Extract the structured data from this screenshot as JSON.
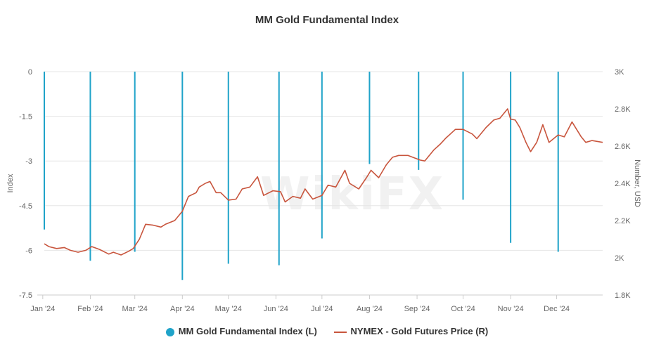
{
  "chart_data": {
    "type": "line",
    "title": "MM Gold Fundamental Index",
    "watermark": "WikiFX",
    "xlabel": "",
    "ylabel_left": "Index",
    "ylabel_right": "Number, USD",
    "x_ticks": [
      "Jan '24",
      "Feb '24",
      "Mar '24",
      "Apr '24",
      "May '24",
      "Jun '24",
      "Jul '24",
      "Aug '24",
      "Sep '24",
      "Oct '24",
      "Nov '24",
      "Dec '24"
    ],
    "y_left_ticks": [
      "0",
      "-1.5",
      "-3",
      "-4.5",
      "-6",
      "-7.5"
    ],
    "y_left_range": [
      -7.5,
      0
    ],
    "y_right_ticks": [
      "3K",
      "2.8K",
      "2.6K",
      "2.4K",
      "2.2K",
      "2K",
      "1.8K"
    ],
    "y_right_range": [
      1800,
      3000
    ],
    "grid": true,
    "legend_position": "bottom",
    "colors": {
      "index": "#1fa3c9",
      "price": "#c8553d",
      "grid": "#e6e6e6"
    },
    "series": [
      {
        "name": "MM Gold Fundamental Index (L)",
        "axis": "left",
        "style": "bar",
        "points": [
          {
            "date": "2024-01-02",
            "value": -5.3
          },
          {
            "date": "2024-02-01",
            "value": -6.35
          },
          {
            "date": "2024-03-01",
            "value": -6.05
          },
          {
            "date": "2024-04-01",
            "value": -7.0
          },
          {
            "date": "2024-05-01",
            "value": -6.45
          },
          {
            "date": "2024-06-03",
            "value": -6.5
          },
          {
            "date": "2024-07-01",
            "value": -5.6
          },
          {
            "date": "2024-08-01",
            "value": -3.1
          },
          {
            "date": "2024-09-02",
            "value": -3.3
          },
          {
            "date": "2024-10-01",
            "value": -4.3
          },
          {
            "date": "2024-11-01",
            "value": -5.75
          },
          {
            "date": "2024-12-02",
            "value": -6.05
          }
        ]
      },
      {
        "name": "NYMEX - Gold Futures Price (R)",
        "axis": "right",
        "style": "line",
        "points": [
          {
            "date": "2024-01-02",
            "value": 2075
          },
          {
            "date": "2024-01-05",
            "value": 2060
          },
          {
            "date": "2024-01-10",
            "value": 2050
          },
          {
            "date": "2024-01-15",
            "value": 2055
          },
          {
            "date": "2024-01-19",
            "value": 2040
          },
          {
            "date": "2024-01-24",
            "value": 2030
          },
          {
            "date": "2024-01-29",
            "value": 2040
          },
          {
            "date": "2024-02-02",
            "value": 2060
          },
          {
            "date": "2024-02-07",
            "value": 2045
          },
          {
            "date": "2024-02-13",
            "value": 2020
          },
          {
            "date": "2024-02-16",
            "value": 2030
          },
          {
            "date": "2024-02-21",
            "value": 2015
          },
          {
            "date": "2024-02-26",
            "value": 2035
          },
          {
            "date": "2024-02-29",
            "value": 2050
          },
          {
            "date": "2024-03-04",
            "value": 2100
          },
          {
            "date": "2024-03-08",
            "value": 2180
          },
          {
            "date": "2024-03-13",
            "value": 2175
          },
          {
            "date": "2024-03-18",
            "value": 2165
          },
          {
            "date": "2024-03-21",
            "value": 2180
          },
          {
            "date": "2024-03-27",
            "value": 2200
          },
          {
            "date": "2024-04-01",
            "value": 2250
          },
          {
            "date": "2024-04-05",
            "value": 2330
          },
          {
            "date": "2024-04-10",
            "value": 2350
          },
          {
            "date": "2024-04-12",
            "value": 2380
          },
          {
            "date": "2024-04-16",
            "value": 2400
          },
          {
            "date": "2024-04-19",
            "value": 2410
          },
          {
            "date": "2024-04-23",
            "value": 2350
          },
          {
            "date": "2024-04-26",
            "value": 2350
          },
          {
            "date": "2024-05-01",
            "value": 2310
          },
          {
            "date": "2024-05-06",
            "value": 2315
          },
          {
            "date": "2024-05-10",
            "value": 2370
          },
          {
            "date": "2024-05-15",
            "value": 2380
          },
          {
            "date": "2024-05-20",
            "value": 2435
          },
          {
            "date": "2024-05-24",
            "value": 2335
          },
          {
            "date": "2024-05-30",
            "value": 2360
          },
          {
            "date": "2024-06-04",
            "value": 2355
          },
          {
            "date": "2024-06-07",
            "value": 2300
          },
          {
            "date": "2024-06-12",
            "value": 2330
          },
          {
            "date": "2024-06-17",
            "value": 2320
          },
          {
            "date": "2024-06-20",
            "value": 2370
          },
          {
            "date": "2024-06-25",
            "value": 2315
          },
          {
            "date": "2024-07-01",
            "value": 2335
          },
          {
            "date": "2024-07-05",
            "value": 2390
          },
          {
            "date": "2024-07-10",
            "value": 2380
          },
          {
            "date": "2024-07-16",
            "value": 2470
          },
          {
            "date": "2024-07-19",
            "value": 2400
          },
          {
            "date": "2024-07-25",
            "value": 2370
          },
          {
            "date": "2024-07-30",
            "value": 2430
          },
          {
            "date": "2024-08-02",
            "value": 2470
          },
          {
            "date": "2024-08-07",
            "value": 2430
          },
          {
            "date": "2024-08-12",
            "value": 2500
          },
          {
            "date": "2024-08-16",
            "value": 2540
          },
          {
            "date": "2024-08-20",
            "value": 2550
          },
          {
            "date": "2024-08-26",
            "value": 2550
          },
          {
            "date": "2024-09-03",
            "value": 2525
          },
          {
            "date": "2024-09-06",
            "value": 2520
          },
          {
            "date": "2024-09-12",
            "value": 2580
          },
          {
            "date": "2024-09-16",
            "value": 2610
          },
          {
            "date": "2024-09-20",
            "value": 2645
          },
          {
            "date": "2024-09-26",
            "value": 2690
          },
          {
            "date": "2024-10-01",
            "value": 2690
          },
          {
            "date": "2024-10-07",
            "value": 2665
          },
          {
            "date": "2024-10-10",
            "value": 2640
          },
          {
            "date": "2024-10-16",
            "value": 2700
          },
          {
            "date": "2024-10-21",
            "value": 2740
          },
          {
            "date": "2024-10-25",
            "value": 2750
          },
          {
            "date": "2024-10-30",
            "value": 2800
          },
          {
            "date": "2024-11-01",
            "value": 2745
          },
          {
            "date": "2024-11-04",
            "value": 2740
          },
          {
            "date": "2024-11-07",
            "value": 2700
          },
          {
            "date": "2024-11-11",
            "value": 2620
          },
          {
            "date": "2024-11-14",
            "value": 2570
          },
          {
            "date": "2024-11-18",
            "value": 2620
          },
          {
            "date": "2024-11-22",
            "value": 2715
          },
          {
            "date": "2024-11-26",
            "value": 2620
          },
          {
            "date": "2024-12-02",
            "value": 2660
          },
          {
            "date": "2024-12-06",
            "value": 2650
          },
          {
            "date": "2024-12-11",
            "value": 2730
          },
          {
            "date": "2024-12-17",
            "value": 2650
          },
          {
            "date": "2024-12-20",
            "value": 2620
          },
          {
            "date": "2024-12-24",
            "value": 2630
          },
          {
            "date": "2024-12-31",
            "value": 2620
          }
        ]
      }
    ]
  }
}
